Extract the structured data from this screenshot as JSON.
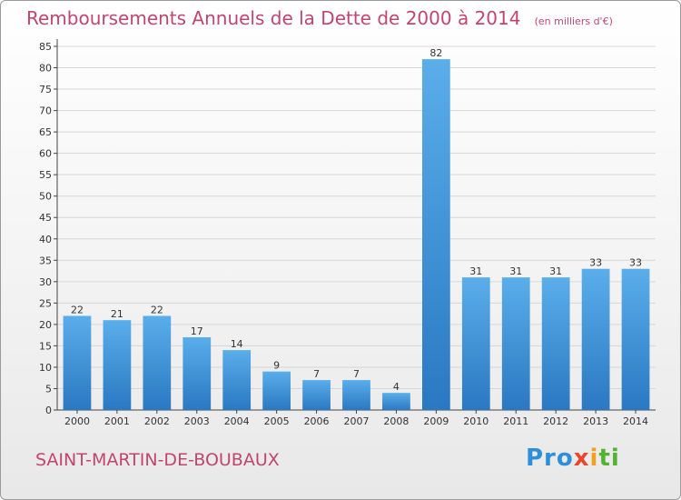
{
  "chart_data": {
    "type": "bar",
    "title": "Remboursements Annuels de la Dette de 2000 à 2014",
    "unit": "(en milliers d'€)",
    "xlabel": "",
    "ylabel": "",
    "categories": [
      "2000",
      "2001",
      "2002",
      "2003",
      "2004",
      "2005",
      "2006",
      "2007",
      "2008",
      "2009",
      "2010",
      "2011",
      "2012",
      "2013",
      "2014"
    ],
    "values": [
      22,
      21,
      22,
      17,
      14,
      9,
      7,
      7,
      4,
      82,
      31,
      31,
      31,
      33,
      33
    ],
    "data_labels": [
      "22",
      "21",
      "22",
      "17",
      "14",
      "9",
      "7",
      "7",
      "4",
      "82",
      "31",
      "31",
      "31",
      "33",
      "33"
    ],
    "ylim": [
      0,
      85
    ],
    "yticks": [
      "0",
      "5",
      "10",
      "15",
      "20",
      "25",
      "30",
      "35",
      "40",
      "45",
      "50",
      "55",
      "60",
      "65",
      "70",
      "75",
      "80",
      "85"
    ],
    "grid": true,
    "bar_color": "#3a8fd6"
  },
  "footer": {
    "commune": "SAINT-MARTIN-DE-BOUBAUX",
    "logo": [
      "Pro",
      "x",
      "i",
      "ti"
    ]
  }
}
